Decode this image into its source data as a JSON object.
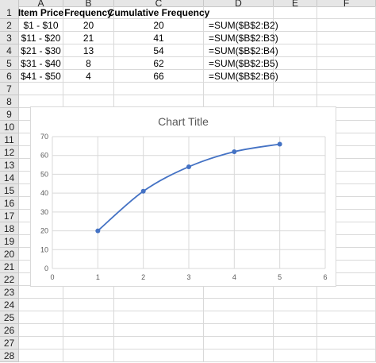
{
  "columns": [
    "A",
    "B",
    "C",
    "D",
    "E",
    "F"
  ],
  "rows": [
    "1",
    "2",
    "3",
    "4",
    "5",
    "6",
    "7",
    "8",
    "9",
    "10",
    "11",
    "12",
    "13",
    "14",
    "15",
    "16",
    "17",
    "18",
    "19",
    "20",
    "21",
    "22",
    "23",
    "24",
    "25",
    "26",
    "27",
    "28"
  ],
  "table": {
    "headers": [
      "Item Price",
      "Frequency",
      "Cumulative Frequency"
    ],
    "rows": [
      {
        "price": "$1 - $10",
        "freq": "20",
        "cum": "20",
        "formula": "=SUM($B$2:B2)"
      },
      {
        "price": "$11 - $20",
        "freq": "21",
        "cum": "41",
        "formula": "=SUM($B$2:B3)"
      },
      {
        "price": "$21 - $30",
        "freq": "13",
        "cum": "54",
        "formula": "=SUM($B$2:B4)"
      },
      {
        "price": "$31 - $40",
        "freq": "8",
        "cum": "62",
        "formula": "=SUM($B$2:B5)"
      },
      {
        "price": "$41 - $50",
        "freq": "4",
        "cum": "66",
        "formula": "=SUM($B$2:B6)"
      }
    ]
  },
  "chart_data": {
    "type": "scatter",
    "title": "Chart Title",
    "x": [
      1,
      2,
      3,
      4,
      5
    ],
    "y": [
      20,
      41,
      54,
      62,
      66
    ],
    "xlim": [
      0,
      6
    ],
    "ylim": [
      0,
      70
    ],
    "x_ticks": [
      "0",
      "1",
      "2",
      "3",
      "4",
      "5",
      "6"
    ],
    "y_ticks": [
      "0",
      "10",
      "20",
      "30",
      "40",
      "50",
      "60",
      "70"
    ],
    "grid": true,
    "line": "smooth",
    "color": "#4472c4"
  }
}
